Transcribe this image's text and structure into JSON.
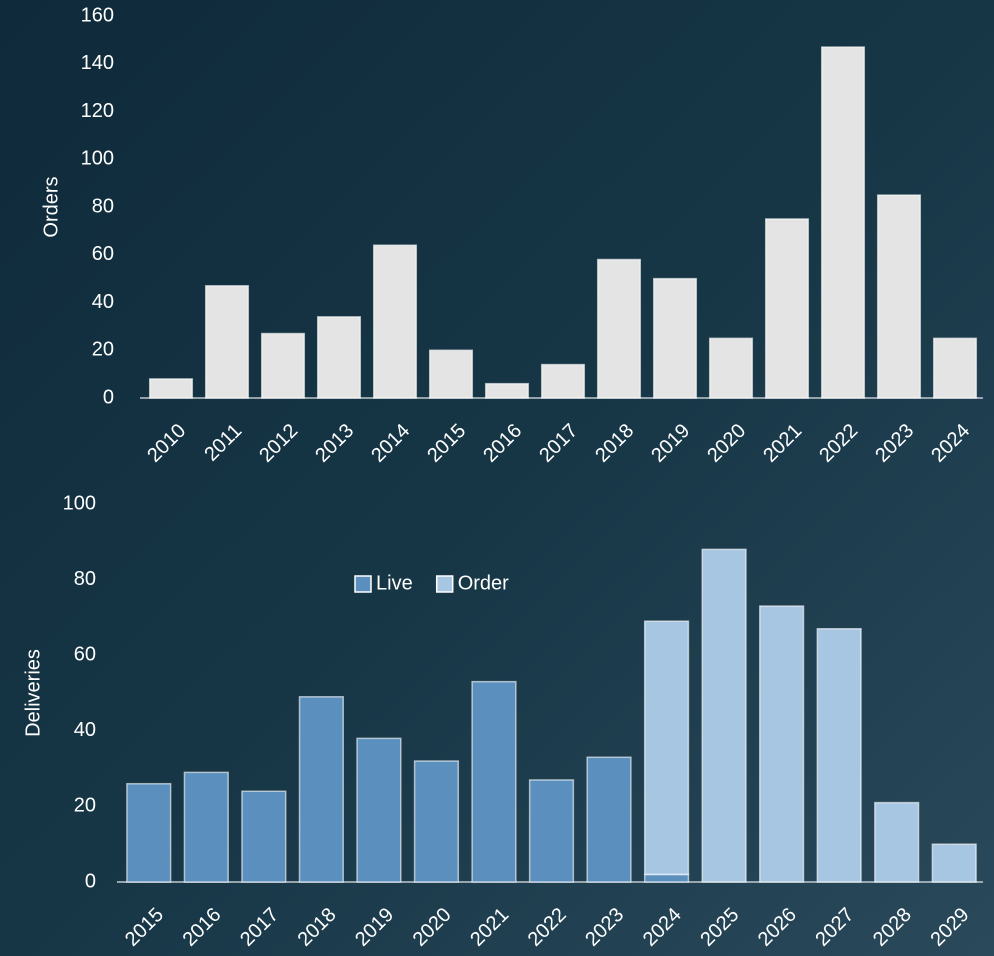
{
  "chart_data": [
    {
      "type": "bar",
      "y_label": "Orders",
      "categories": [
        "2010",
        "2011",
        "2012",
        "2013",
        "2014",
        "2015",
        "2016",
        "2017",
        "2018",
        "2019",
        "2020",
        "2021",
        "2022",
        "2023",
        "2024"
      ],
      "values": [
        8,
        47,
        27,
        34,
        64,
        20,
        6,
        14,
        58,
        50,
        25,
        75,
        147,
        85,
        25
      ],
      "color": "#e4e4e4",
      "ylim": [
        0,
        160
      ],
      "yticks": [
        0,
        20,
        40,
        60,
        80,
        100,
        120,
        140,
        160
      ]
    },
    {
      "type": "stacked_bar",
      "y_label": "Deliveries",
      "categories": [
        "2015",
        "2016",
        "2017",
        "2018",
        "2019",
        "2020",
        "2021",
        "2022",
        "2023",
        "2024",
        "2025",
        "2026",
        "2027",
        "2028",
        "2029"
      ],
      "series": [
        {
          "name": "Live",
          "color": "#5a8fbe",
          "values": [
            26,
            29,
            24,
            49,
            38,
            32,
            53,
            27,
            33,
            2,
            null,
            null,
            null,
            null,
            null
          ]
        },
        {
          "name": "Order",
          "color": "#a7c6e2",
          "values": [
            null,
            null,
            null,
            null,
            null,
            null,
            null,
            null,
            null,
            67,
            88,
            73,
            67,
            21,
            10
          ]
        }
      ],
      "ylim": [
        0,
        100
      ],
      "yticks": [
        0,
        20,
        40,
        60,
        80,
        100
      ],
      "legend": "top-center"
    }
  ]
}
